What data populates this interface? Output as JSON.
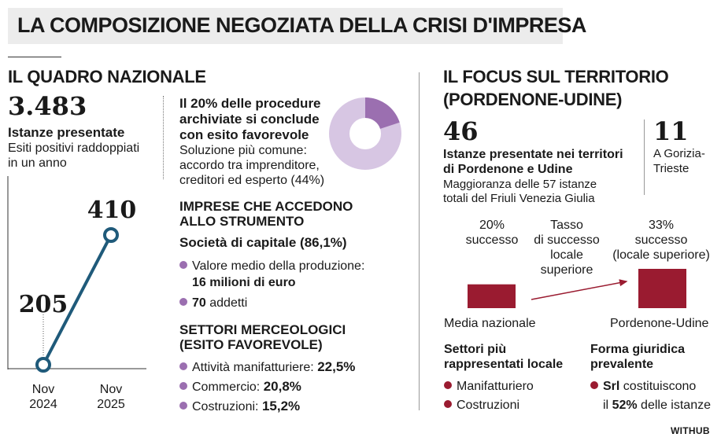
{
  "title": "LA COMPOSIZIONE NEGOZIATA DELLA CRISI D'IMPRESA",
  "national": {
    "header": "IL QUADRO NAZIONALE",
    "total": "3.483",
    "total_label": "Istanze presentate",
    "total_sub_1": "Esiti positivi raddoppiati",
    "total_sub_2": "in un anno"
  },
  "chart_data": {
    "type": "line",
    "categories": [
      "Nov 2024",
      "Nov 2025"
    ],
    "values": [
      205,
      410
    ],
    "value_labels": [
      "205",
      "410"
    ],
    "x_labels": [
      [
        "Nov",
        "2024"
      ],
      [
        "Nov",
        "2025"
      ]
    ],
    "ylim": [
      205,
      410
    ]
  },
  "archived": {
    "title_1": "Il 20% delle procedure",
    "title_2": "archiviate si conclude",
    "title_3": "con esito favorevole",
    "sub_1": "Soluzione più comune:",
    "sub_2": "accordo tra imprenditore,",
    "sub_3": "creditori ed esperto (44%)",
    "donut_share": 0.2,
    "colors": {
      "highlight": "#9b6fb0",
      "rest": "#d7c6e3"
    }
  },
  "companies": {
    "header_1": "IMPRESE CHE ACCEDONO",
    "header_2": "ALLO STRUMENTO",
    "type_label": "Società di capitale (86,1%)",
    "items": [
      {
        "label": "Valore medio della produzione:",
        "value": "16 milioni di euro"
      },
      {
        "value": "70",
        "label": "addetti"
      }
    ]
  },
  "sectors": {
    "header_1": "SETTORI MERCEOLOGICI",
    "header_2": "(ESITO FAVOREVOLE)",
    "items": [
      {
        "label": "Attività manifatturiere:",
        "value": "22,5%"
      },
      {
        "label": "Commercio:",
        "value": "20,8%"
      },
      {
        "label": "Costruzioni:",
        "value": "15,2%"
      }
    ]
  },
  "territory": {
    "header_1": "IL FOCUS SUL TERRITORIO",
    "header_2": "(PORDENONE-UDINE)",
    "count": "46",
    "count_label_1": "Istanze presentate nei territori",
    "count_label_2": "di Pordenone e Udine",
    "count_sub_1": "Maggioranza delle 57 istanze",
    "count_sub_2": "totali del Friuli Venezia Giulia",
    "gorizia_count": "11",
    "gorizia_label_1": "A Gorizia-",
    "gorizia_label_2": "Trieste"
  },
  "success_chart": {
    "bars": [
      {
        "category": "Media nazionale",
        "value": 20,
        "label_1": "20%",
        "label_2": "successo"
      },
      {
        "category": "Pordenone-Udine",
        "value": 33,
        "label_1": "33%",
        "label_2": "successo",
        "label_3": "(locale superiore)"
      }
    ],
    "annotation_1": "Tasso",
    "annotation_2": "di successo",
    "annotation_3": "locale",
    "annotation_4": "superiore",
    "bar_color": "#9a1b30"
  },
  "local_sectors": {
    "header_1": "Settori più",
    "header_2": "rappresentati locale",
    "items": [
      "Manifatturiero",
      "Costruzioni"
    ]
  },
  "legal_form": {
    "header_1": "Forma giuridica",
    "header_2": "prevalente",
    "line1_bold": "Srl",
    "line1_rest": "costituiscono",
    "line2_pre": "il",
    "line2_bold": "52%",
    "line2_rest": "delle istanze"
  },
  "credit": "WITHUB"
}
